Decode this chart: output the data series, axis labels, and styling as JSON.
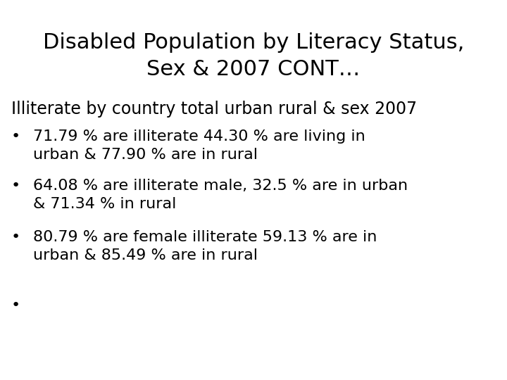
{
  "title_line1": "Disabled Population by Literacy Status,",
  "title_line2": "Sex & 2007 CONT…",
  "subtitle": "Illiterate by country total urban rural & sex 2007",
  "bullets": [
    "71.79 % are illiterate 44.30 % are living in\nurban & 77.90 % are in rural",
    "64.08 % are illiterate male, 32.5 % are in urban\n& 71.34 % in rural",
    "80.79 % are female illiterate 59.13 % are in\nurban & 85.49 % are in rural",
    ""
  ],
  "bg_color": "#ffffff",
  "text_color": "#000000",
  "title_fontsize": 22,
  "subtitle_fontsize": 17,
  "bullet_fontsize": 16,
  "font_family": "DejaVu Sans"
}
